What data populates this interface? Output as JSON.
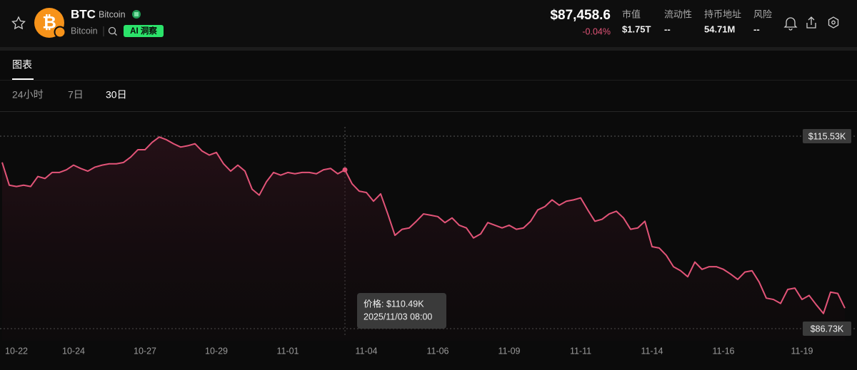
{
  "header": {
    "symbol": "BTC",
    "name": "Bitcoin",
    "subname": "Bitcoin",
    "ai_badge": "AI 洞察",
    "price": "$87,458.6",
    "change": "-0.04%",
    "stats": [
      {
        "label": "市值",
        "value": "$1.75T"
      },
      {
        "label": "流动性",
        "value": "--"
      },
      {
        "label": "持币地址",
        "value": "54.71M"
      },
      {
        "label": "风险",
        "value": "--"
      }
    ]
  },
  "tabs": [
    "图表"
  ],
  "ranges": [
    "24小时",
    "7日",
    "30日"
  ],
  "chart_data": {
    "type": "line",
    "color": "#e25478",
    "categories": [
      null,
      null,
      "10-22",
      null,
      null,
      null,
      null,
      null,
      null,
      null,
      "10-24",
      null,
      null,
      null,
      null,
      null,
      null,
      null,
      null,
      null,
      "10-27",
      null,
      null,
      null,
      null,
      null,
      null,
      null,
      null,
      null,
      "10-29",
      null,
      null,
      null,
      null,
      null,
      null,
      null,
      null,
      null,
      "11-01",
      null,
      null,
      null,
      null,
      null,
      null,
      null,
      null,
      null,
      null,
      "11-04",
      null,
      null,
      null,
      null,
      null,
      null,
      null,
      null,
      null,
      "11-06",
      null,
      null,
      null,
      null,
      null,
      null,
      null,
      null,
      null,
      "11-09",
      null,
      null,
      null,
      null,
      null,
      null,
      null,
      null,
      null,
      "11-11",
      null,
      null,
      null,
      null,
      null,
      null,
      null,
      null,
      null,
      "11-14",
      null,
      null,
      null,
      null,
      null,
      null,
      null,
      null,
      null,
      "11-16",
      null,
      null,
      null,
      null,
      null,
      null,
      null,
      null,
      null,
      null,
      "11-19",
      null,
      null,
      null,
      null,
      null,
      null
    ],
    "values": [
      111.6,
      108.2,
      108.0,
      108.2,
      108.0,
      109.5,
      109.2,
      110.1,
      110.1,
      110.5,
      111.2,
      110.7,
      110.3,
      110.9,
      111.2,
      111.4,
      111.4,
      111.6,
      112.4,
      113.5,
      113.5,
      114.6,
      115.4,
      115.0,
      114.4,
      113.9,
      114.1,
      114.4,
      113.3,
      112.7,
      113.1,
      111.4,
      110.3,
      111.2,
      110.3,
      107.6,
      106.7,
      108.7,
      110.1,
      109.7,
      110.1,
      109.9,
      110.1,
      110.1,
      109.9,
      110.5,
      110.7,
      109.9,
      110.49,
      108.4,
      107.3,
      107.1,
      105.8,
      106.9,
      103.9,
      100.7,
      101.6,
      101.8,
      102.8,
      103.9,
      103.7,
      103.5,
      102.6,
      103.3,
      102.2,
      101.8,
      100.3,
      100.9,
      102.6,
      102.2,
      101.8,
      102.2,
      101.6,
      101.8,
      102.8,
      104.5,
      105.0,
      106.0,
      105.2,
      105.8,
      106.0,
      106.3,
      104.5,
      102.8,
      103.1,
      103.9,
      104.3,
      103.3,
      101.6,
      101.8,
      102.8,
      99.0,
      98.8,
      97.7,
      96.0,
      95.4,
      94.5,
      96.7,
      95.6,
      96.0,
      96.0,
      95.6,
      94.9,
      94.1,
      95.2,
      95.4,
      93.7,
      91.3,
      91.1,
      90.5,
      92.6,
      92.8,
      91.1,
      91.7,
      90.3,
      89.0,
      92.2,
      92.0,
      89.8
    ],
    "ylim": [
      84.92,
      119.05
    ],
    "yticks": [
      {
        "value": 115.53,
        "label": "$115.53K"
      },
      {
        "value": 86.73,
        "label": "$86.73K"
      }
    ],
    "tooltip": {
      "price": "价格: $110.49K",
      "time": "2025/11/03 08:00"
    }
  }
}
